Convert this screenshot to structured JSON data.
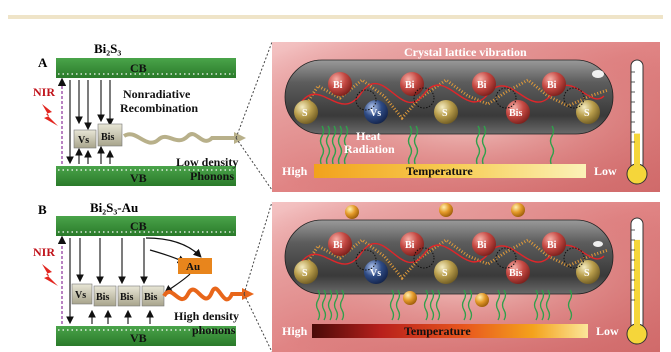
{
  "panel_a": {
    "letter": "A",
    "material": "Bi₂S₃",
    "cb": "CB",
    "vb": "VB",
    "nir": "NIR",
    "defect_vs": "Vs",
    "defect_bis": "Bis",
    "process": [
      "Nonradiative",
      "Recombination"
    ],
    "phonon_label": [
      "Low density",
      "Phonons"
    ],
    "lattice_title": "Crystal lattice vibration",
    "atoms": [
      "Bi",
      "Bi",
      "Bi",
      "Bi",
      "S",
      "Vs",
      "S",
      "Bis",
      "S"
    ],
    "heat_label": [
      "Heat",
      "Radiation"
    ],
    "temp_high": "High",
    "temp_label": "Temperature",
    "temp_low": "Low",
    "thermometer_level": 0.35,
    "colors": {
      "atom_bi": "#c44a44",
      "atom_s": "#b99e4c",
      "vacancy": "#2f4c86",
      "heat_wave": "#2fa04a",
      "lattice_wave": "#e0262a"
    }
  },
  "panel_b": {
    "letter": "B",
    "material": "Bi₂S₃-Au",
    "cb": "CB",
    "vb": "VB",
    "nir": "NIR",
    "au": "Au",
    "defect_vs": "Vs",
    "defect_bis": [
      "Bis",
      "Bis",
      "Bis"
    ],
    "phonon_label": [
      "High density",
      "phonons"
    ],
    "atoms": [
      "Bi",
      "Bi",
      "Bi",
      "Bi",
      "S",
      "Vs",
      "S",
      "Bis",
      "S"
    ],
    "temp_high": "High",
    "temp_label": "Temperature",
    "temp_low": "Low",
    "thermometer_level": 0.85,
    "colors": {
      "au": "#e8851c",
      "au_particle": "#e49a2a"
    }
  }
}
